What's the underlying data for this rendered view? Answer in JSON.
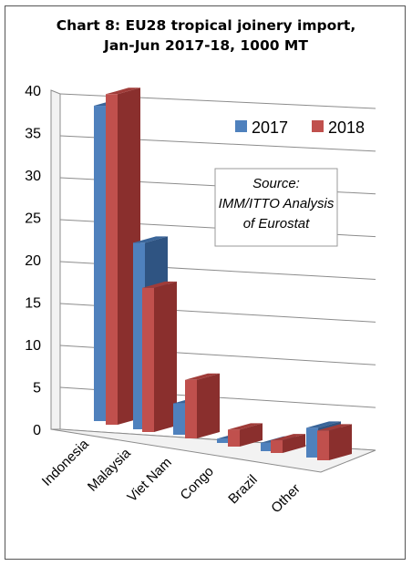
{
  "chart_data": {
    "type": "bar",
    "title_lines": [
      "Chart 8: EU28 tropical joinery import,",
      "Jan-Jun 2017-18, 1000 MT"
    ],
    "categories": [
      "Indonesia",
      "Malaysia",
      "Viet Nam",
      "Congo",
      "Brazil",
      "Other"
    ],
    "series": [
      {
        "name": "2017",
        "values": [
          37.2,
          22.0,
          3.7,
          0.5,
          1.0,
          3.5
        ]
      },
      {
        "name": "2018",
        "values": [
          39.0,
          17.0,
          6.9,
          2.0,
          1.5,
          3.5
        ]
      }
    ],
    "y_ticks": [
      "0",
      "5",
      "10",
      "15",
      "20",
      "25",
      "30",
      "35",
      "40"
    ],
    "ylim": [
      0,
      40
    ],
    "grid": true,
    "legend_position": "top-right",
    "source_lines": [
      "Source:",
      "IMM/ITTO Analysis",
      "of Eurostat"
    ],
    "colors": {
      "2017": {
        "front": "#4f81bd",
        "side": "#2f5482",
        "top": "#3a6599"
      },
      "2018": {
        "front": "#c0504d",
        "side": "#8a2f2d",
        "top": "#a03c39"
      }
    }
  }
}
